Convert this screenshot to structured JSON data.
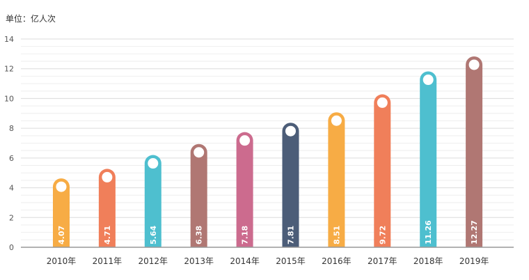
{
  "chart_data": {
    "type": "bar",
    "unit_label": "单位：亿人次",
    "categories": [
      "2010年",
      "2011年",
      "2012年",
      "2013年",
      "2014年",
      "2015年",
      "2016年",
      "2017年",
      "2018年",
      "2019年"
    ],
    "values": [
      4.07,
      4.71,
      5.64,
      6.38,
      7.18,
      7.81,
      8.51,
      9.72,
      11.26,
      12.27
    ],
    "value_labels": [
      "4.07",
      "4.71",
      "5.64",
      "6.38",
      "7.18",
      "7.81",
      "8.51",
      "9.72",
      "11.26",
      "12.27"
    ],
    "colors": [
      "#f7ac45",
      "#f07f5a",
      "#4ebfcf",
      "#b07773",
      "#cc6b8e",
      "#4c5d78",
      "#f7ac45",
      "#f07f5a",
      "#4ebfcf",
      "#b07773"
    ],
    "ylim": [
      0,
      14
    ],
    "yticks": [
      0,
      2,
      4,
      6,
      8,
      10,
      12,
      14
    ],
    "grid": true
  }
}
